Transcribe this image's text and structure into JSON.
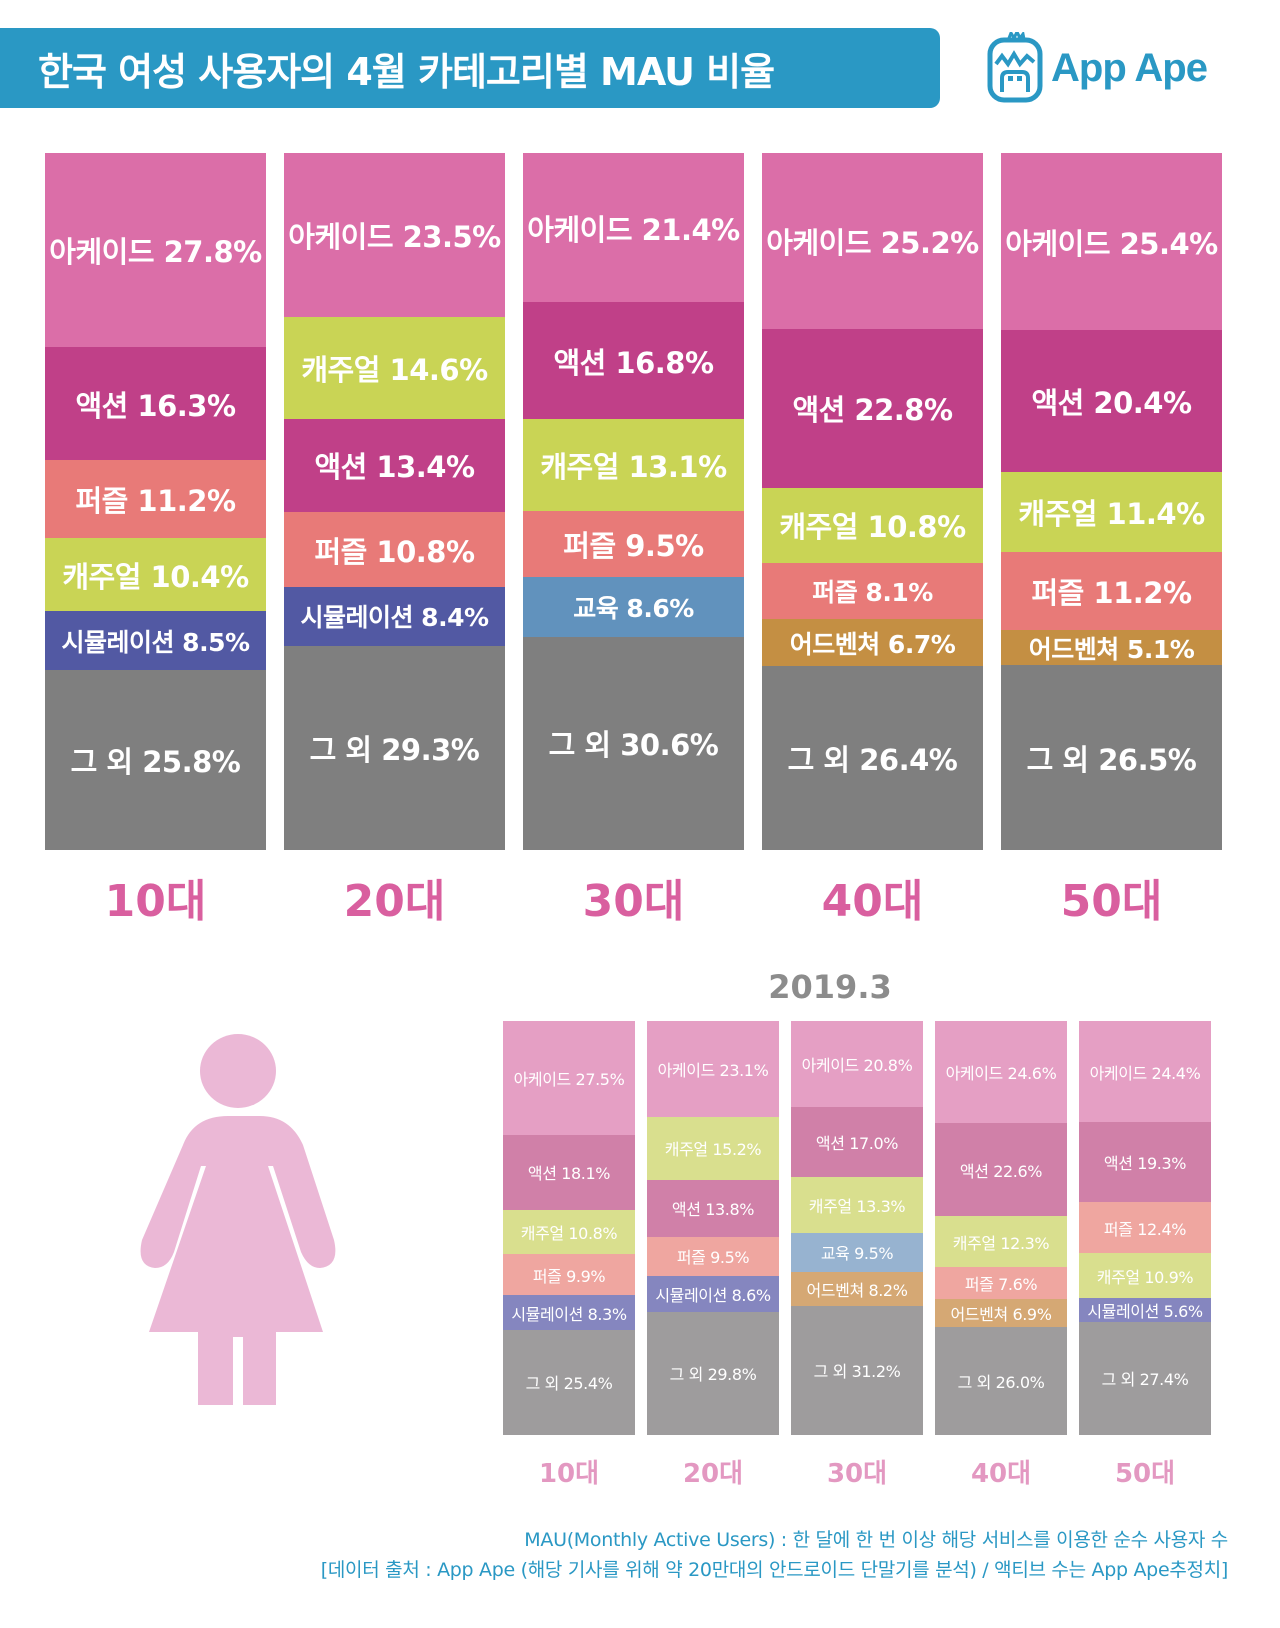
{
  "header": {
    "title": "한국 여성 사용자의 4월 카테고리별 MAU 비율",
    "logo_text": "App Ape",
    "brand_color": "#2a98c4"
  },
  "colors": {
    "아케이드": "#db6ea8",
    "액션": "#c04088",
    "퍼즐": "#e87a78",
    "캐주얼": "#c9d455",
    "시뮬레이션": "#5259a3",
    "교육": "#6192bd",
    "어드벤쳐": "#c48f43",
    "그 외": "#7f7f7f",
    "light": {
      "아케이드": "#e59fc4",
      "액션": "#d080a8",
      "퍼즐": "#efa6a0",
      "캐주얼": "#d9df8e",
      "시뮬레이션": "#8586bf",
      "교육": "#97b3d0",
      "어드벤쳐": "#d5a874",
      "그 외": "#9e9c9d"
    }
  },
  "chart_data": [
    {
      "type": "bar",
      "stacked": true,
      "title": "한국 여성 사용자의 4월 카테고리별 MAU 비율",
      "categories": [
        "10대",
        "20대",
        "30대",
        "40대",
        "50대"
      ],
      "ylim": [
        0,
        100
      ],
      "unit": "%",
      "stacks": [
        {
          "label": "10대",
          "segments": [
            {
              "name": "아케이드",
              "value": 27.8,
              "text": "아케이드 27.8%"
            },
            {
              "name": "액션",
              "value": 16.3,
              "text": "액션 16.3%"
            },
            {
              "name": "퍼즐",
              "value": 11.2,
              "text": "퍼즐 11.2%"
            },
            {
              "name": "캐주얼",
              "value": 10.4,
              "text": "캐주얼 10.4%"
            },
            {
              "name": "시뮬레이션",
              "value": 8.5,
              "text": "시뮬레이션 8.5%"
            },
            {
              "name": "그 외",
              "value": 25.8,
              "text": "그 외 25.8%"
            }
          ]
        },
        {
          "label": "20대",
          "segments": [
            {
              "name": "아케이드",
              "value": 23.5,
              "text": "아케이드 23.5%"
            },
            {
              "name": "캐주얼",
              "value": 14.6,
              "text": "캐주얼 14.6%"
            },
            {
              "name": "액션",
              "value": 13.4,
              "text": "액션 13.4%"
            },
            {
              "name": "퍼즐",
              "value": 10.8,
              "text": "퍼즐 10.8%"
            },
            {
              "name": "시뮬레이션",
              "value": 8.4,
              "text": "시뮬레이션 8.4%"
            },
            {
              "name": "그 외",
              "value": 29.3,
              "text": "그 외 29.3%"
            }
          ]
        },
        {
          "label": "30대",
          "segments": [
            {
              "name": "아케이드",
              "value": 21.4,
              "text": "아케이드 21.4%"
            },
            {
              "name": "액션",
              "value": 16.8,
              "text": "액션 16.8%"
            },
            {
              "name": "캐주얼",
              "value": 13.1,
              "text": "캐주얼 13.1%"
            },
            {
              "name": "퍼즐",
              "value": 9.5,
              "text": "퍼즐 9.5%"
            },
            {
              "name": "교육",
              "value": 8.6,
              "text": "교육 8.6%"
            },
            {
              "name": "그 외",
              "value": 30.6,
              "text": "그 외 30.6%"
            }
          ]
        },
        {
          "label": "40대",
          "segments": [
            {
              "name": "아케이드",
              "value": 25.2,
              "text": "아케이드 25.2%"
            },
            {
              "name": "액션",
              "value": 22.8,
              "text": "액션 22.8%"
            },
            {
              "name": "캐주얼",
              "value": 10.8,
              "text": "캐주얼 10.8%"
            },
            {
              "name": "퍼즐",
              "value": 8.1,
              "text": "퍼즐 8.1%"
            },
            {
              "name": "어드벤쳐",
              "value": 6.7,
              "text": "어드벤쳐 6.7%"
            },
            {
              "name": "그 외",
              "value": 26.4,
              "text": "그 외 26.4%"
            }
          ]
        },
        {
          "label": "50대",
          "segments": [
            {
              "name": "아케이드",
              "value": 25.4,
              "text": "아케이드 25.4%"
            },
            {
              "name": "액션",
              "value": 20.4,
              "text": "액션 20.4%"
            },
            {
              "name": "캐주얼",
              "value": 11.4,
              "text": "캐주얼 11.4%"
            },
            {
              "name": "퍼즐",
              "value": 11.2,
              "text": "퍼즐 11.2%"
            },
            {
              "name": "어드벤쳐",
              "value": 5.1,
              "text": "어드벤쳐 5.1%"
            },
            {
              "name": "그 외",
              "value": 26.5,
              "text": "그 외 26.5%"
            }
          ]
        }
      ]
    },
    {
      "type": "bar",
      "stacked": true,
      "title": "2019.3",
      "categories": [
        "10대",
        "20대",
        "30대",
        "40대",
        "50대"
      ],
      "ylim": [
        0,
        100
      ],
      "unit": "%",
      "stacks": [
        {
          "label": "10대",
          "segments": [
            {
              "name": "아케이드",
              "value": 27.5,
              "text": "아케이드 27.5%"
            },
            {
              "name": "액션",
              "value": 18.1,
              "text": "액션 18.1%"
            },
            {
              "name": "캐주얼",
              "value": 10.8,
              "text": "캐주얼 10.8%"
            },
            {
              "name": "퍼즐",
              "value": 9.9,
              "text": "퍼즐 9.9%"
            },
            {
              "name": "시뮬레이션",
              "value": 8.3,
              "text": "시뮬레이션 8.3%"
            },
            {
              "name": "그 외",
              "value": 25.4,
              "text": "그 외 25.4%"
            }
          ]
        },
        {
          "label": "20대",
          "segments": [
            {
              "name": "아케이드",
              "value": 23.1,
              "text": "아케이드 23.1%"
            },
            {
              "name": "캐주얼",
              "value": 15.2,
              "text": "캐주얼 15.2%"
            },
            {
              "name": "액션",
              "value": 13.8,
              "text": "액션 13.8%"
            },
            {
              "name": "퍼즐",
              "value": 9.5,
              "text": "퍼즐 9.5%"
            },
            {
              "name": "시뮬레이션",
              "value": 8.6,
              "text": "시뮬레이션 8.6%"
            },
            {
              "name": "그 외",
              "value": 29.8,
              "text": "그 외 29.8%"
            }
          ]
        },
        {
          "label": "30대",
          "segments": [
            {
              "name": "아케이드",
              "value": 20.8,
              "text": "아케이드 20.8%"
            },
            {
              "name": "액션",
              "value": 17.0,
              "text": "액션 17.0%"
            },
            {
              "name": "캐주얼",
              "value": 13.3,
              "text": "캐주얼 13.3%"
            },
            {
              "name": "교육",
              "value": 9.5,
              "text": "교육 9.5%"
            },
            {
              "name": "어드벤쳐",
              "value": 8.2,
              "text": "어드벤쳐 8.2%"
            },
            {
              "name": "그 외",
              "value": 31.2,
              "text": "그 외 31.2%"
            }
          ]
        },
        {
          "label": "40대",
          "segments": [
            {
              "name": "아케이드",
              "value": 24.6,
              "text": "아케이드 24.6%"
            },
            {
              "name": "액션",
              "value": 22.6,
              "text": "액션 22.6%"
            },
            {
              "name": "캐주얼",
              "value": 12.3,
              "text": "캐주얼 12.3%"
            },
            {
              "name": "퍼즐",
              "value": 7.6,
              "text": "퍼즐 7.6%"
            },
            {
              "name": "어드벤쳐",
              "value": 6.9,
              "text": "어드벤쳐 6.9%"
            },
            {
              "name": "그 외",
              "value": 26.0,
              "text": "그 외 26.0%"
            }
          ]
        },
        {
          "label": "50대",
          "segments": [
            {
              "name": "아케이드",
              "value": 24.4,
              "text": "아케이드 24.4%"
            },
            {
              "name": "액션",
              "value": 19.3,
              "text": "액션 19.3%"
            },
            {
              "name": "퍼즐",
              "value": 12.4,
              "text": "퍼즐 12.4%"
            },
            {
              "name": "캐주얼",
              "value": 10.9,
              "text": "캐주얼 10.9%"
            },
            {
              "name": "시뮬레이션",
              "value": 5.6,
              "text": "시뮬레이션 5.6%"
            },
            {
              "name": "그 외",
              "value": 27.4,
              "text": "그 외 27.4%"
            }
          ]
        }
      ]
    }
  ],
  "footer": {
    "line1": "MAU(Monthly Active Users) : 한 달에 한 번 이상 해당 서비스를 이용한 순수 사용자 수",
    "line2": "[데이터 출처 : App Ape (해당 기사를 위해 약 20만대의 안드로이드 단말기를 분석) / 액티브 수는 App Ape추정치]"
  },
  "figure_icon": {
    "name": "woman-figure-icon",
    "color": "#ebb8d6"
  }
}
